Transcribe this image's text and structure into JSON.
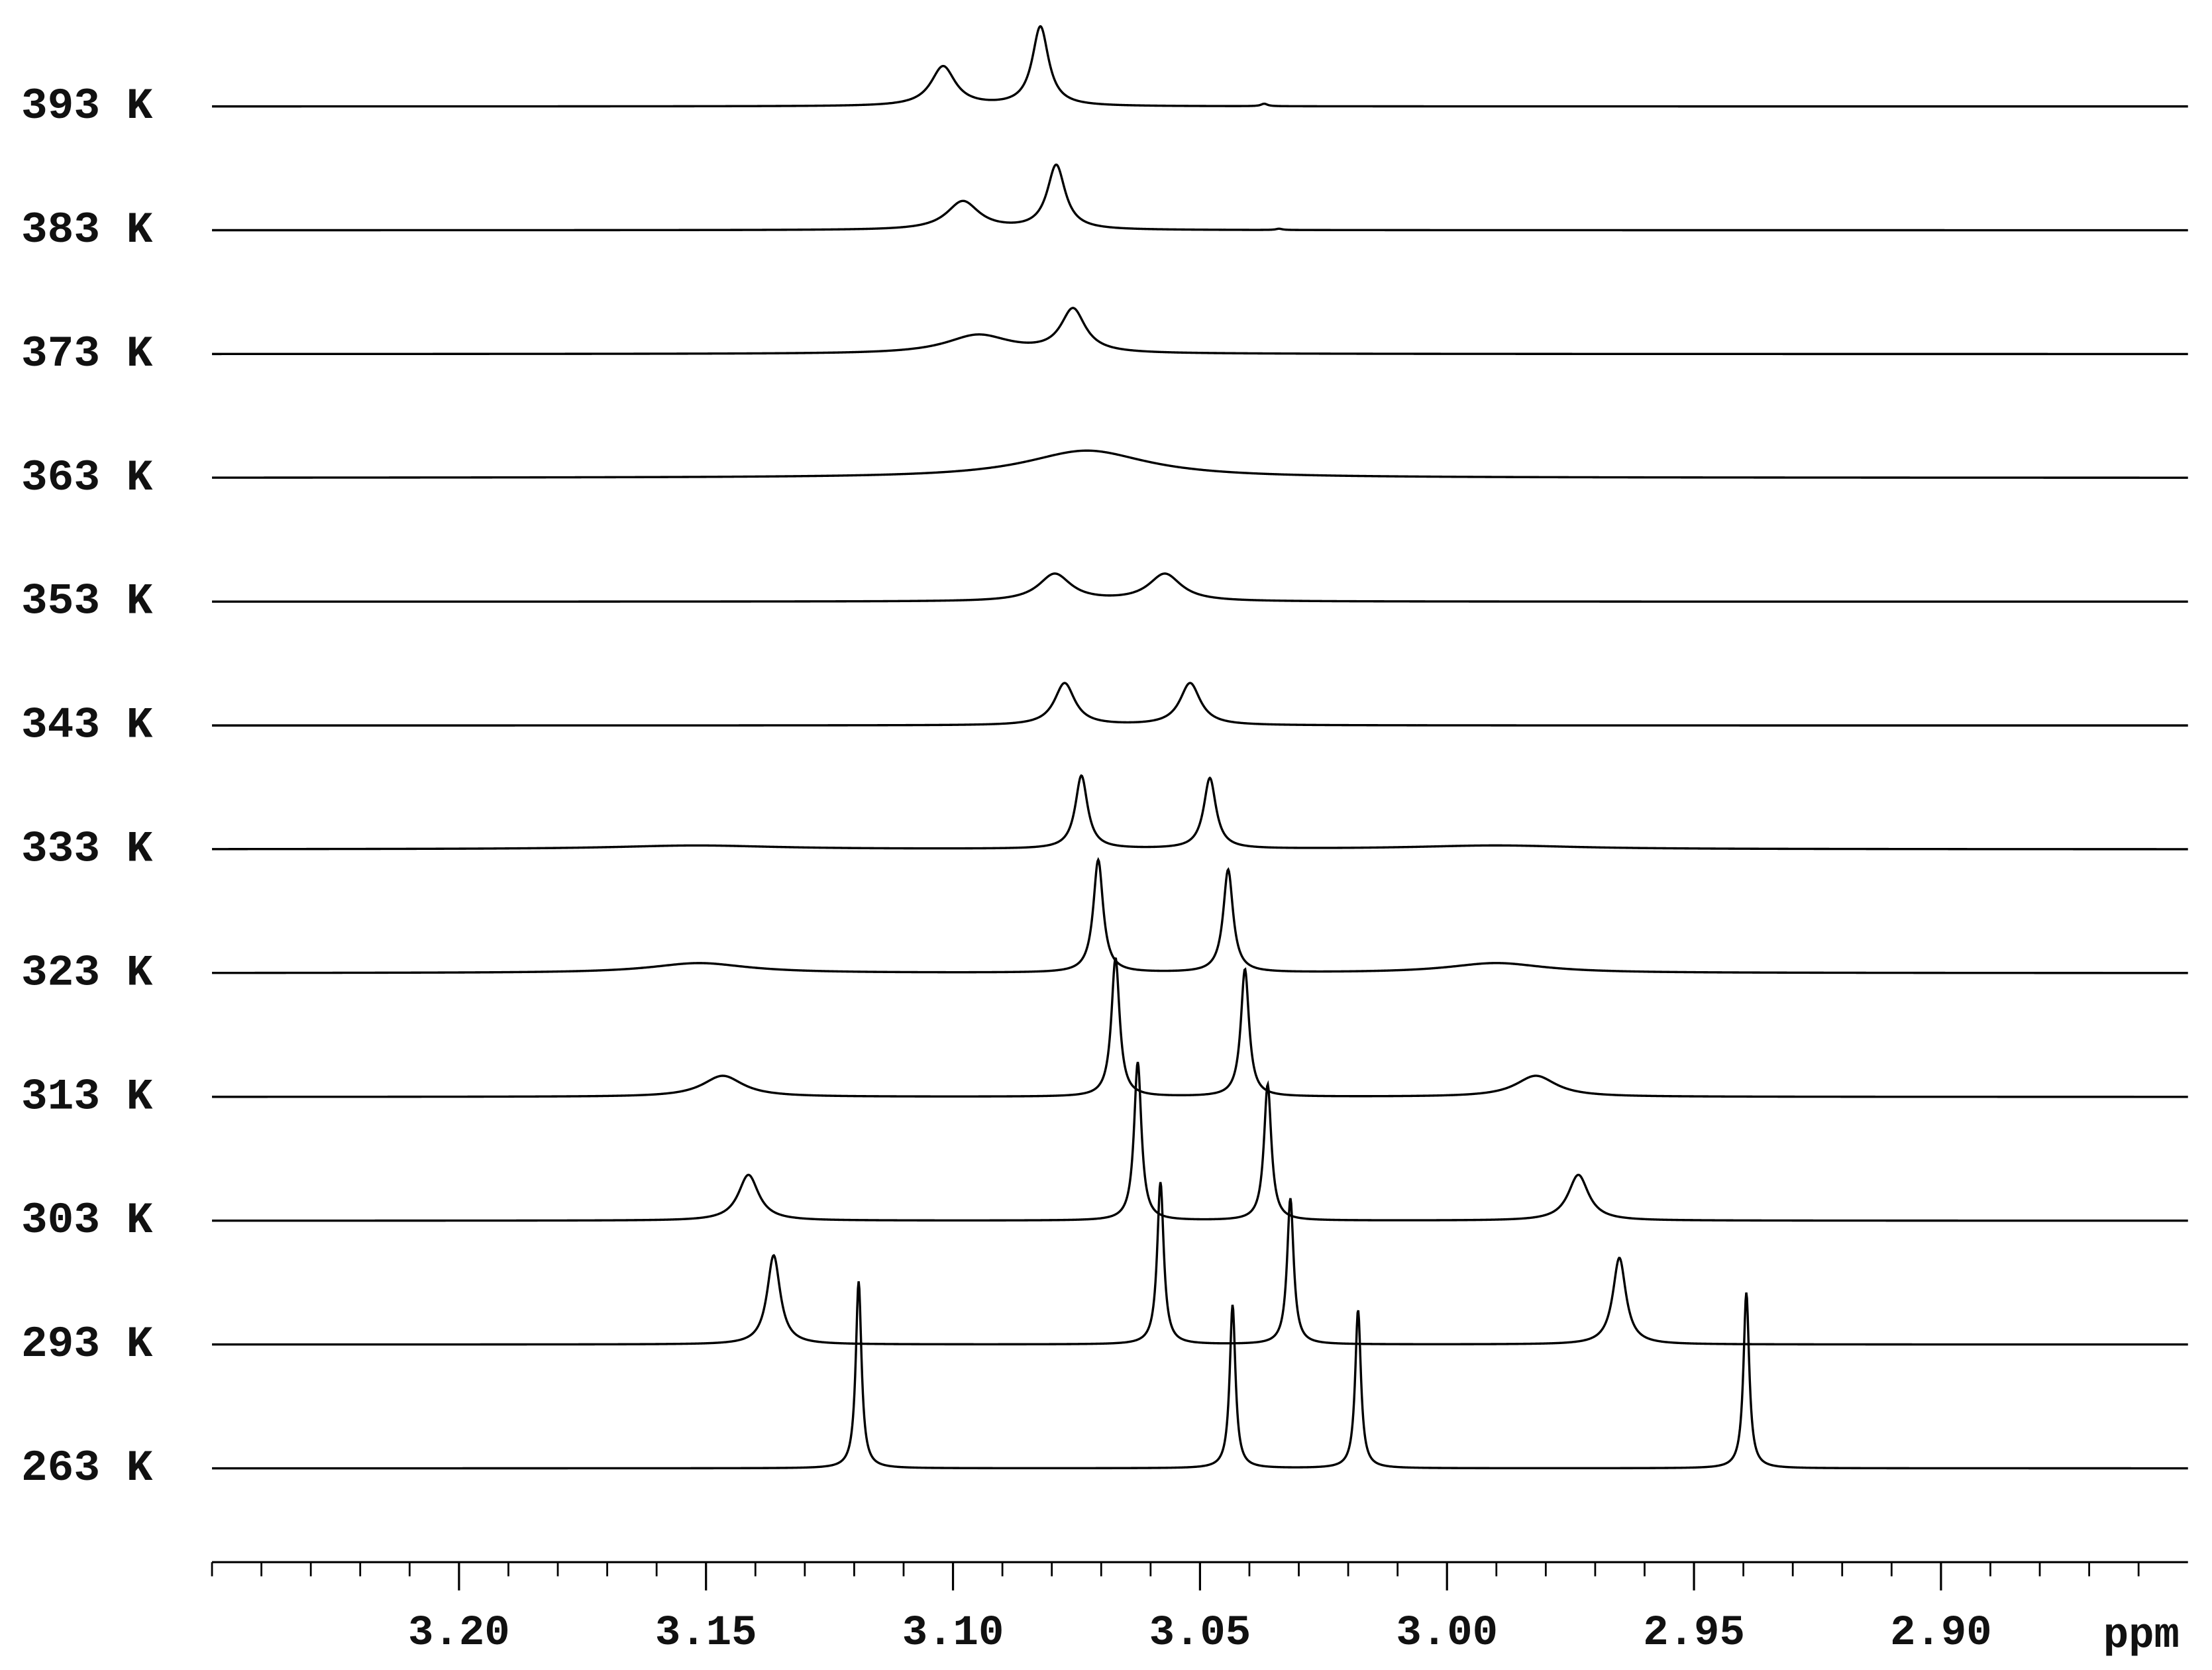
{
  "chart_data": {
    "type": "stacked-spectra",
    "xlabel": "ppm",
    "xlim": [
      3.25,
      2.85
    ],
    "xticks": [
      {
        "value": 3.2,
        "label": "3.20"
      },
      {
        "value": 3.15,
        "label": "3.15"
      },
      {
        "value": 3.1,
        "label": "3.10"
      },
      {
        "value": 3.05,
        "label": "3.05"
      },
      {
        "value": 3.0,
        "label": "3.00"
      },
      {
        "value": 2.95,
        "label": "2.95"
      },
      {
        "value": 2.9,
        "label": "2.90"
      }
    ],
    "xminor_ticks": [
      3.25,
      3.24,
      3.23,
      3.22,
      3.21,
      3.19,
      3.18,
      3.17,
      3.16,
      3.14,
      3.13,
      3.12,
      3.11,
      3.09,
      3.08,
      3.07,
      3.06,
      3.04,
      3.03,
      3.02,
      3.01,
      2.99,
      2.98,
      2.97,
      2.96,
      2.94,
      2.93,
      2.92,
      2.91,
      2.89,
      2.88,
      2.87,
      2.86
    ],
    "color": "#000000",
    "series": [
      {
        "name": "393 K",
        "peaks": [
          {
            "x": 3.102,
            "height": 0.32,
            "width": 0.003
          },
          {
            "x": 3.0823,
            "height": 0.64,
            "width": 0.002
          },
          {
            "x": 3.037,
            "height": 0.02,
            "width": 0.0008
          }
        ]
      },
      {
        "name": "383 K",
        "peaks": [
          {
            "x": 3.098,
            "height": 0.23,
            "width": 0.004
          },
          {
            "x": 3.0791,
            "height": 0.52,
            "width": 0.0022
          },
          {
            "x": 3.034,
            "height": 0.01,
            "width": 0.0008
          }
        ]
      },
      {
        "name": "373 K",
        "peaks": [
          {
            "x": 3.0949,
            "height": 0.15,
            "width": 0.008
          },
          {
            "x": 3.0757,
            "height": 0.35,
            "width": 0.003
          }
        ]
      },
      {
        "name": "363 K",
        "peaks": [
          {
            "x": 3.0729,
            "height": 0.22,
            "width": 0.015
          }
        ]
      },
      {
        "name": "353 K",
        "peaks": [
          {
            "x": 3.0794,
            "height": 0.22,
            "width": 0.004
          },
          {
            "x": 3.0571,
            "height": 0.22,
            "width": 0.004
          }
        ]
      },
      {
        "name": "343 K",
        "peaks": [
          {
            "x": 3.0774,
            "height": 0.34,
            "width": 0.0025
          },
          {
            "x": 3.052,
            "height": 0.34,
            "width": 0.0025
          }
        ]
      },
      {
        "name": "333 K",
        "peaks": [
          {
            "x": 3.152,
            "height": 0.03,
            "width": 0.02
          },
          {
            "x": 3.074,
            "height": 0.59,
            "width": 0.0015
          },
          {
            "x": 3.048,
            "height": 0.57,
            "width": 0.0015
          },
          {
            "x": 2.99,
            "height": 0.03,
            "width": 0.02
          }
        ]
      },
      {
        "name": "323 K",
        "peaks": [
          {
            "x": 3.1514,
            "height": 0.08,
            "width": 0.012
          },
          {
            "x": 3.0706,
            "height": 0.91,
            "width": 0.0012
          },
          {
            "x": 3.0443,
            "height": 0.83,
            "width": 0.0012
          },
          {
            "x": 2.99,
            "height": 0.08,
            "width": 0.012
          }
        ]
      },
      {
        "name": "313 K",
        "peaks": [
          {
            "x": 3.1466,
            "height": 0.17,
            "width": 0.005
          },
          {
            "x": 3.0671,
            "height": 1.12,
            "width": 0.001
          },
          {
            "x": 3.0409,
            "height": 1.03,
            "width": 0.001
          },
          {
            "x": 2.982,
            "height": 0.17,
            "width": 0.005
          }
        ]
      },
      {
        "name": "303 K",
        "peaks": [
          {
            "x": 3.1414,
            "height": 0.37,
            "width": 0.0025
          },
          {
            "x": 3.0626,
            "height": 1.28,
            "width": 0.0009
          },
          {
            "x": 3.0363,
            "height": 1.1,
            "width": 0.0009
          },
          {
            "x": 2.9734,
            "height": 0.37,
            "width": 0.0025
          }
        ]
      },
      {
        "name": "293 K",
        "peaks": [
          {
            "x": 3.1363,
            "height": 0.72,
            "width": 0.0016
          },
          {
            "x": 3.058,
            "height": 1.31,
            "width": 0.0008
          },
          {
            "x": 3.0317,
            "height": 1.18,
            "width": 0.0008
          },
          {
            "x": 2.9651,
            "height": 0.7,
            "width": 0.0016
          }
        ]
      },
      {
        "name": "263 K",
        "peaks": [
          {
            "x": 3.1191,
            "height": 1.51,
            "width": 0.0007
          },
          {
            "x": 3.0434,
            "height": 1.32,
            "width": 0.0007
          },
          {
            "x": 3.018,
            "height": 1.28,
            "width": 0.0007
          },
          {
            "x": 2.9394,
            "height": 1.42,
            "width": 0.0007
          }
        ]
      }
    ]
  }
}
